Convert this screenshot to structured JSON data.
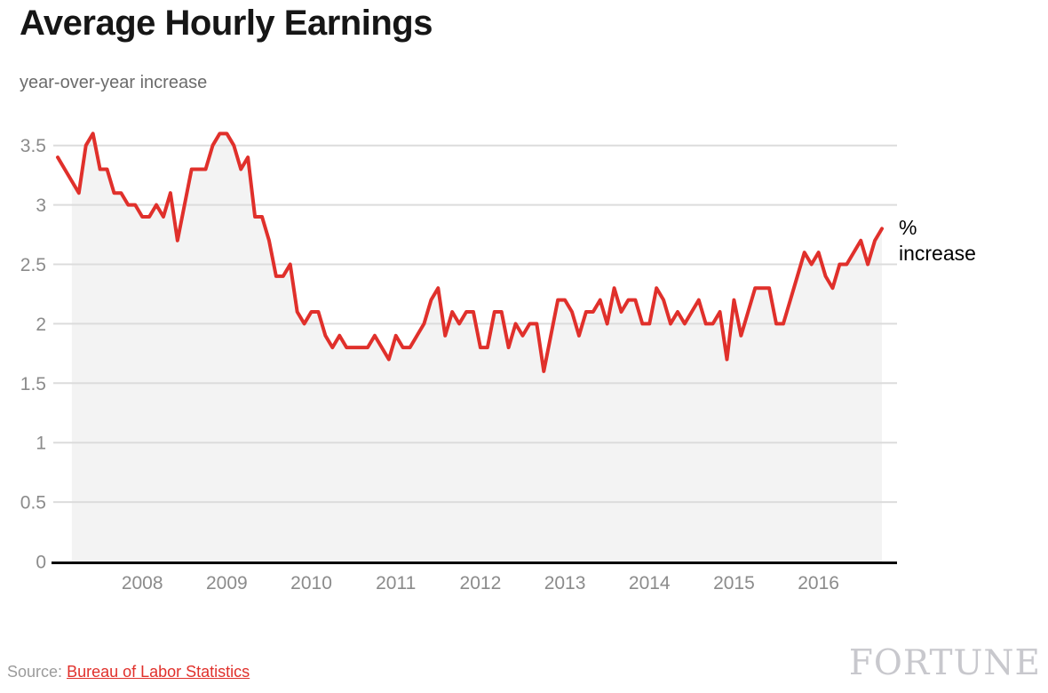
{
  "header": {
    "title": "Average Hourly Earnings",
    "subtitle": "year-over-year increase"
  },
  "chart_data": {
    "type": "line",
    "title": "Average Hourly Earnings",
    "subtitle": "year-over-year increase",
    "frequency": "monthly",
    "x_start": "2007-01",
    "x_end": "2016-10",
    "xlabel": "",
    "ylabel": "% increase",
    "ylim": [
      0,
      3.7
    ],
    "grid": true,
    "legend_position": "none",
    "ytick_labels": [
      "0",
      "0.5",
      "1",
      "1.5",
      "2",
      "2.5",
      "3",
      "3.5"
    ],
    "ytick_values": [
      0,
      0.5,
      1,
      1.5,
      2,
      2.5,
      3,
      3.5
    ],
    "xtick_labels": [
      "2008",
      "2009",
      "2010",
      "2011",
      "2012",
      "2013",
      "2014",
      "2015",
      "2016"
    ],
    "series": [
      {
        "name": "Average hourly earnings, year-over-year % increase",
        "values": [
          3.4,
          3.3,
          3.2,
          3.1,
          3.5,
          3.6,
          3.3,
          3.3,
          3.1,
          3.1,
          3.0,
          3.0,
          2.9,
          2.9,
          3.0,
          2.9,
          3.1,
          2.7,
          3.0,
          3.3,
          3.3,
          3.3,
          3.5,
          3.6,
          3.6,
          3.5,
          3.3,
          3.4,
          2.9,
          2.9,
          2.7,
          2.4,
          2.4,
          2.5,
          2.1,
          2.0,
          2.1,
          2.1,
          1.9,
          1.8,
          1.9,
          1.8,
          1.8,
          1.8,
          1.8,
          1.9,
          1.8,
          1.7,
          1.9,
          1.8,
          1.8,
          1.9,
          2.0,
          2.2,
          2.3,
          1.9,
          2.1,
          2.0,
          2.1,
          2.1,
          1.8,
          1.8,
          2.1,
          2.1,
          1.8,
          2.0,
          1.9,
          2.0,
          2.0,
          1.6,
          1.9,
          2.2,
          2.2,
          2.1,
          1.9,
          2.1,
          2.1,
          2.2,
          2.0,
          2.3,
          2.1,
          2.2,
          2.2,
          2.0,
          2.0,
          2.3,
          2.2,
          2.0,
          2.1,
          2.0,
          2.1,
          2.2,
          2.0,
          2.0,
          2.1,
          1.7,
          2.2,
          1.9,
          2.1,
          2.3,
          2.3,
          2.3,
          2.0,
          2.0,
          2.2,
          2.4,
          2.6,
          2.5,
          2.6,
          2.4,
          2.3,
          2.5,
          2.5,
          2.6,
          2.7,
          2.5,
          2.7,
          2.8
        ]
      }
    ],
    "annotation": {
      "line1": "%",
      "line2": "increase"
    },
    "colors": {
      "line": "#e0302b",
      "area_fill": "#f3f3f3",
      "gridline": "#dcdcdc",
      "axis": "#000000",
      "tick_label": "#8b8b8b"
    }
  },
  "footer": {
    "source_label": "Source:",
    "source_link_text": "Bureau of Labor Statistics",
    "brand": "FORTUNE"
  }
}
